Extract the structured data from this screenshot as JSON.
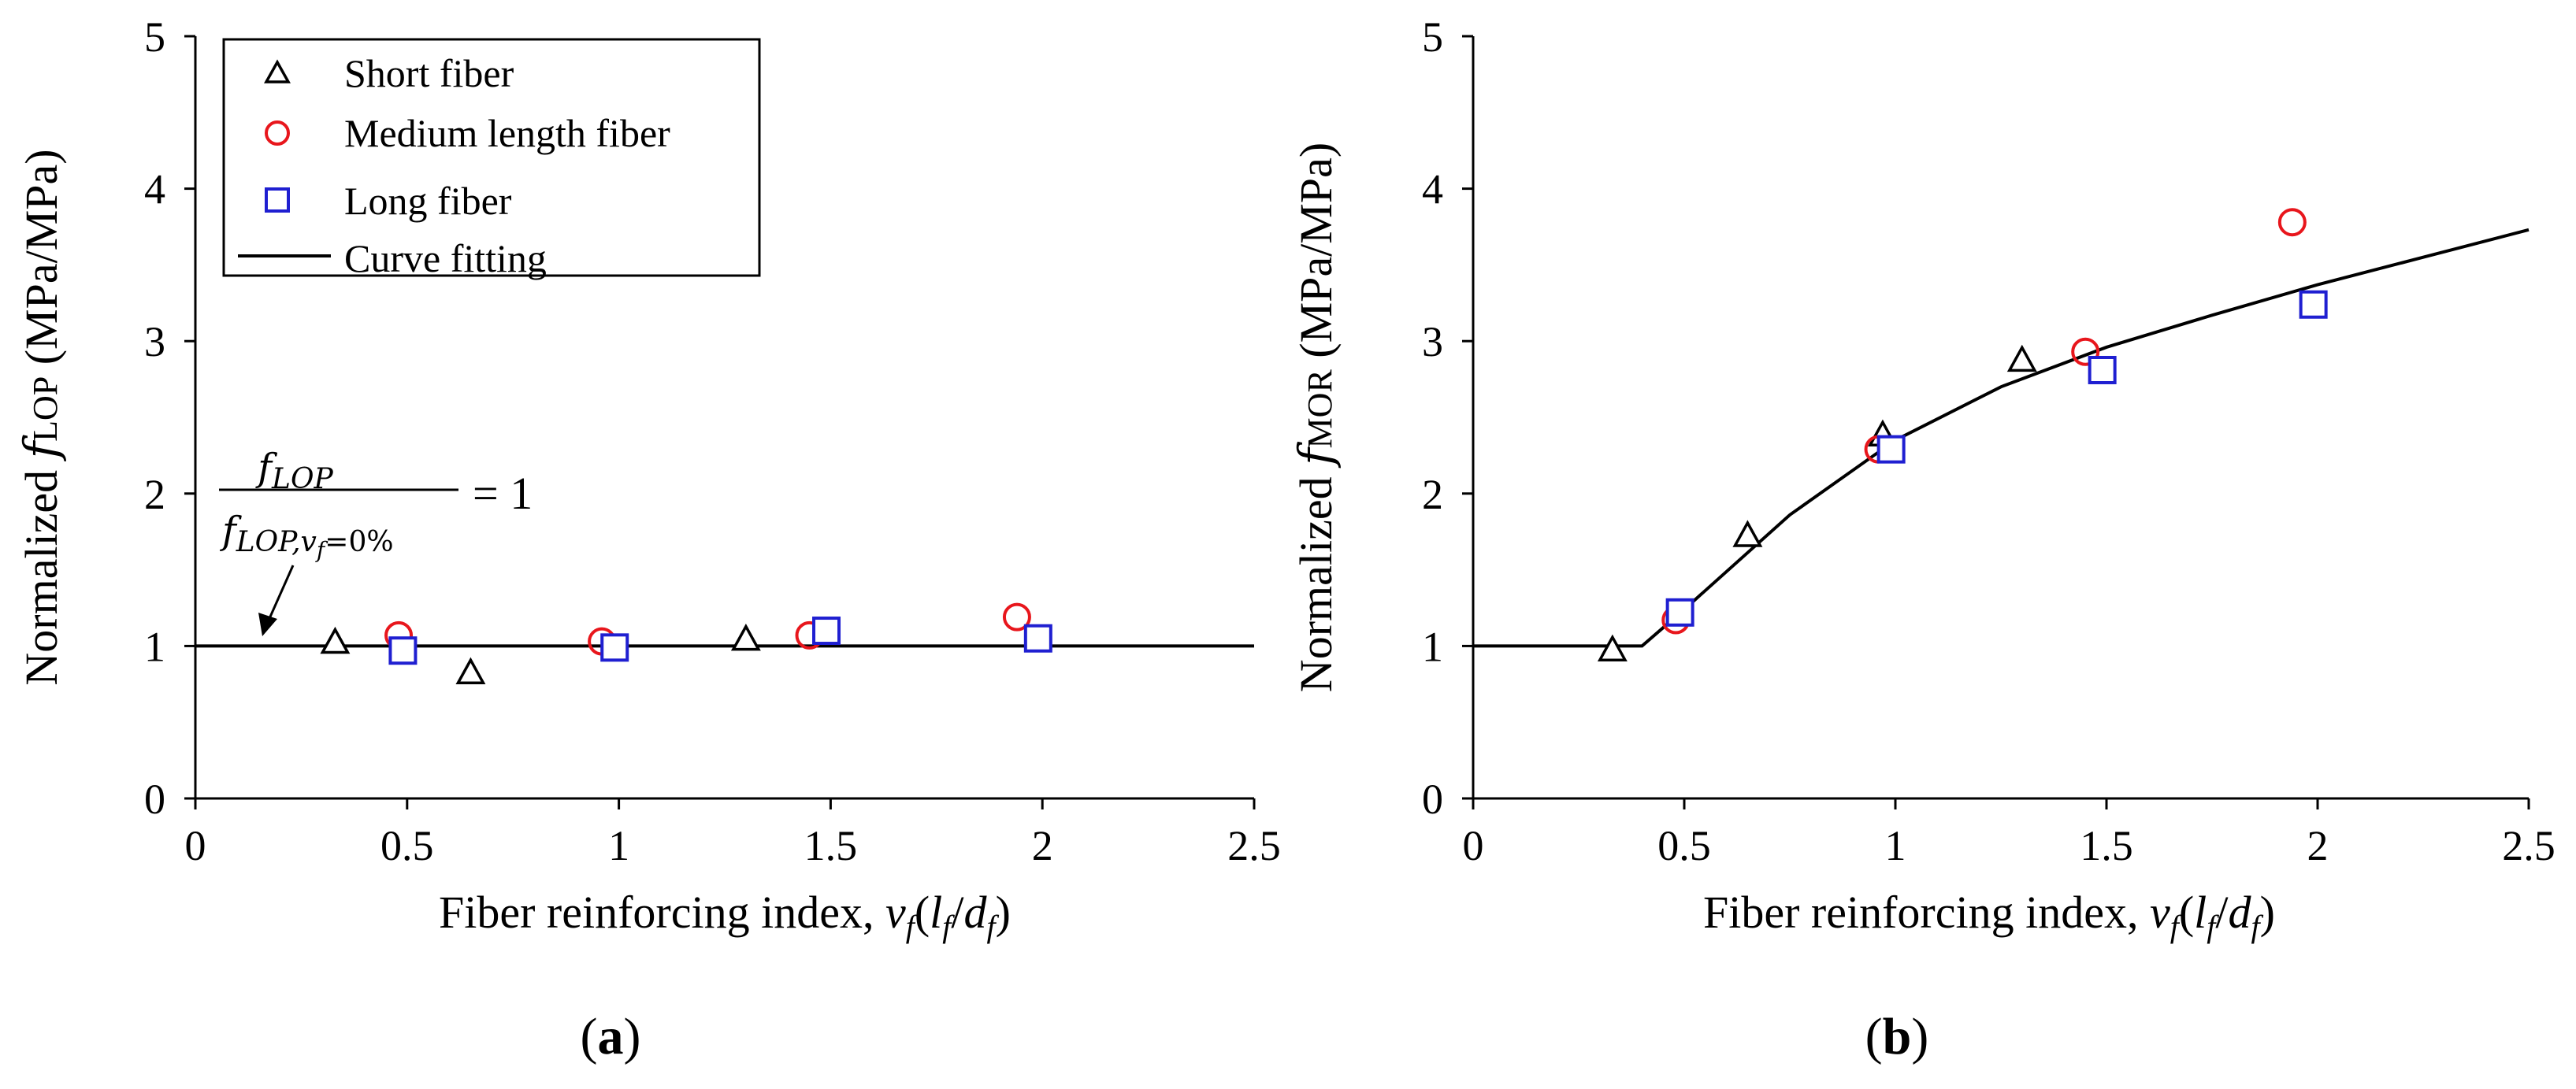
{
  "chart_data": [
    {
      "type": "scatter",
      "panel_label": "a",
      "title": "",
      "xlabel": "Fiber reinforcing index, v_f(l_f/d_f)",
      "ylabel": "Normalized f_LOP (MPa/MPa)",
      "ylabel_prefix": "Normalized ",
      "ylabel_var": "f",
      "ylabel_sub": "LOP",
      "ylabel_unit": " (MPa/MPa)",
      "xlim": [
        0,
        2.5
      ],
      "ylim": [
        0,
        5
      ],
      "xticks": [
        "0",
        "0.5",
        "1",
        "1.5",
        "2",
        "2.5"
      ],
      "yticks": [
        "0",
        "1",
        "2",
        "3",
        "4",
        "5"
      ],
      "legend_position": "top-left",
      "series": [
        {
          "name": "Short fiber",
          "marker": "triangle",
          "color": "#000000",
          "x": [
            0.33,
            0.65,
            1.3
          ],
          "y": [
            1.02,
            0.82,
            1.04
          ]
        },
        {
          "name": "Medium length fiber",
          "marker": "circle",
          "color": "#e8161c",
          "x": [
            0.48,
            0.96,
            1.45,
            1.94
          ],
          "y": [
            1.07,
            1.03,
            1.07,
            1.19
          ]
        },
        {
          "name": "Long fiber",
          "marker": "square",
          "color": "#1f1fd1",
          "x": [
            0.49,
            0.99,
            1.49,
            1.99
          ],
          "y": [
            0.97,
            0.99,
            1.1,
            1.05
          ]
        },
        {
          "name": "Curve fitting",
          "marker": "line",
          "color": "#000000",
          "x": [
            0,
            2.5
          ],
          "y": [
            1,
            1
          ]
        }
      ],
      "annotation": {
        "numerator": "f",
        "numerator_sub": "LOP",
        "denominator": "f",
        "denominator_sub": "LOP,v",
        "denominator_subsub": "f",
        "denominator_tail": "=0%",
        "rhs": "= 1",
        "arrow_target": [
          0.17,
          1.0
        ]
      }
    },
    {
      "type": "scatter",
      "panel_label": "b",
      "title": "",
      "xlabel": "Fiber reinforcing index, v_f(l_f/d_f)",
      "ylabel": "Normalized f_MOR (MPa/MPa)",
      "ylabel_prefix": "Normalized ",
      "ylabel_var": "f",
      "ylabel_sub": "MOR",
      "ylabel_unit": " (MPa/MPa)",
      "xlim": [
        0,
        2.5
      ],
      "ylim": [
        0,
        5
      ],
      "xticks": [
        "0",
        "0.5",
        "1",
        "1.5",
        "2",
        "2.5"
      ],
      "yticks": [
        "0",
        "1",
        "2",
        "3",
        "4",
        "5"
      ],
      "series": [
        {
          "name": "Short fiber",
          "marker": "triangle",
          "color": "#000000",
          "x": [
            0.33,
            0.65,
            0.97,
            1.3
          ],
          "y": [
            0.97,
            1.72,
            2.38,
            2.87
          ]
        },
        {
          "name": "Medium length fiber",
          "marker": "circle",
          "color": "#e8161c",
          "x": [
            0.48,
            0.96,
            1.45,
            1.94
          ],
          "y": [
            1.17,
            2.29,
            2.93,
            3.78
          ]
        },
        {
          "name": "Long fiber",
          "marker": "square",
          "color": "#1f1fd1",
          "x": [
            0.49,
            0.99,
            1.49,
            1.99
          ],
          "y": [
            1.22,
            2.29,
            2.81,
            3.24
          ]
        },
        {
          "name": "Curve fitting",
          "marker": "line",
          "color": "#000000",
          "x": [
            0,
            0.4,
            0.5,
            0.75,
            1.0,
            1.25,
            1.5,
            1.75,
            2.0,
            2.25,
            2.5
          ],
          "y": [
            1.0,
            1.0,
            1.24,
            1.86,
            2.35,
            2.7,
            2.96,
            3.17,
            3.37,
            3.55,
            3.73
          ]
        }
      ]
    }
  ],
  "xlabel_parts": {
    "text": "Fiber reinforcing index, ",
    "v": "v",
    "f1": "f",
    "open": "(",
    "l": "l",
    "f2": "f",
    "slash": "/",
    "d": "d",
    "f3": "f",
    "close": ")"
  }
}
